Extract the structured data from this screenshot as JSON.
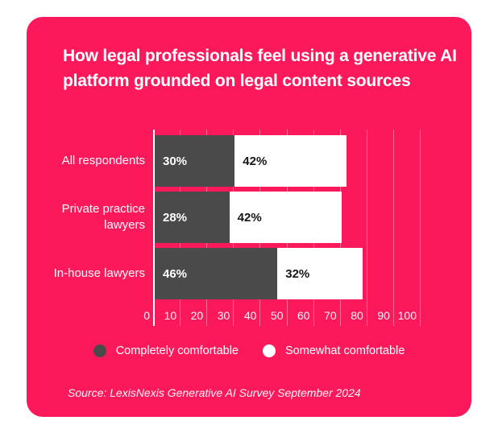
{
  "page": {
    "background": "#FFFFFF"
  },
  "card": {
    "background": "#FB195B",
    "title": "How legal professionals feel using a generative AI platform grounded on legal content sources",
    "source": "Source: LexisNexis Generative AI Survey September 2024"
  },
  "chart_data": {
    "type": "bar",
    "orientation": "horizontal",
    "stacked": true,
    "title": "How legal professionals feel using a generative AI platform grounded on legal content sources",
    "categories": [
      "All respondents",
      "Private practice lawyers",
      "In-house lawyers"
    ],
    "series": [
      {
        "name": "Completely comfortable",
        "color": "#4B4A4A",
        "label_color": "#FFFFFF",
        "values": [
          30,
          28,
          46
        ],
        "data_labels": [
          "30%",
          "28%",
          "46%"
        ]
      },
      {
        "name": "Somewhat comfortable",
        "color": "#FFFFFF",
        "label_color": "#161616",
        "values": [
          42,
          42,
          32
        ],
        "data_labels": [
          "42%",
          "42%",
          "32%"
        ]
      }
    ],
    "x_ticks": [
      0,
      10,
      20,
      30,
      40,
      50,
      60,
      70,
      80,
      90,
      100
    ],
    "xlim": [
      0,
      100
    ],
    "grid": true,
    "grid_color": "rgba(255,255,255,0.35)",
    "axis_color": "#FFFFFF",
    "legend_position": "bottom",
    "source": "Source: LexisNexis Generative AI Survey September 2024"
  }
}
